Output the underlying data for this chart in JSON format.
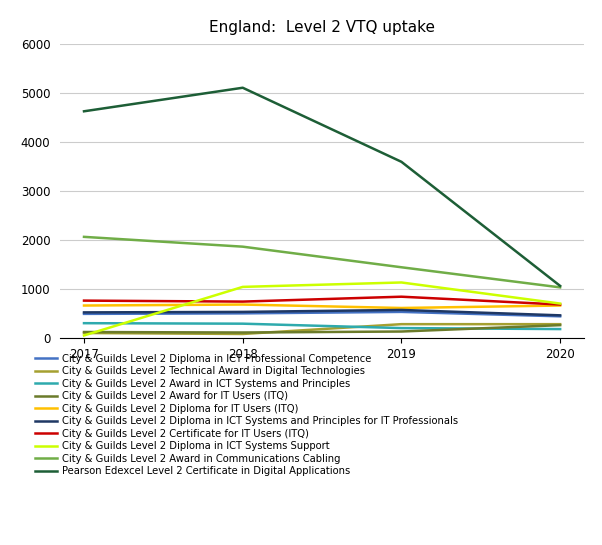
{
  "title": "England:  Level 2 VTQ uptake",
  "years": [
    2017,
    2018,
    2019,
    2020
  ],
  "ylim": [
    0,
    6000
  ],
  "yticks": [
    0,
    1000,
    2000,
    3000,
    4000,
    5000,
    6000
  ],
  "series": [
    {
      "label": "City & Guilds Level 2 Diploma in ICT Professional Competence",
      "color": "#4472C4",
      "values": [
        490,
        500,
        530,
        440
      ]
    },
    {
      "label": "City & Guilds Level 2 Technical Award in Digital Technologies",
      "color": "#A5A030",
      "values": [
        100,
        80,
        280,
        280
      ]
    },
    {
      "label": "City & Guilds Level 2 Award in ICT Systems and Principles",
      "color": "#2EAAAD",
      "values": [
        300,
        290,
        200,
        180
      ]
    },
    {
      "label": "City & Guilds Level 2 Award for IT Users (ITQ)",
      "color": "#6B7B2A",
      "values": [
        120,
        110,
        130,
        260
      ]
    },
    {
      "label": "City & Guilds Level 2 Diploma for IT Users (ITQ)",
      "color": "#FFC000",
      "values": [
        660,
        680,
        610,
        660
      ]
    },
    {
      "label": "City & Guilds Level 2 Diploma in ICT Systems and Principles for IT Professionals",
      "color": "#1F3864",
      "values": [
        520,
        530,
        570,
        460
      ]
    },
    {
      "label": "City & Guilds Level 2 Certificate for IT Users (ITQ)",
      "color": "#CC0000",
      "values": [
        760,
        740,
        840,
        680
      ]
    },
    {
      "label": "City & Guilds Level 2 Diploma in ICT Systems Support",
      "color": "#CCFF00",
      "values": [
        50,
        1040,
        1130,
        700
      ]
    },
    {
      "label": "City & Guilds Level 2 Award in Communications Cabling",
      "color": "#70AD47",
      "values": [
        2060,
        1860,
        1440,
        1030
      ]
    },
    {
      "label": "Pearson Edexcel Level 2 Certificate in Digital Applications",
      "color": "#1D5E36",
      "values": [
        4620,
        5100,
        3590,
        1060
      ]
    }
  ],
  "legend_fontsize": 7.2,
  "title_fontsize": 11,
  "tick_fontsize": 8.5,
  "background_color": "#FFFFFF",
  "grid_color": "#CCCCCC",
  "linewidth": 1.8
}
